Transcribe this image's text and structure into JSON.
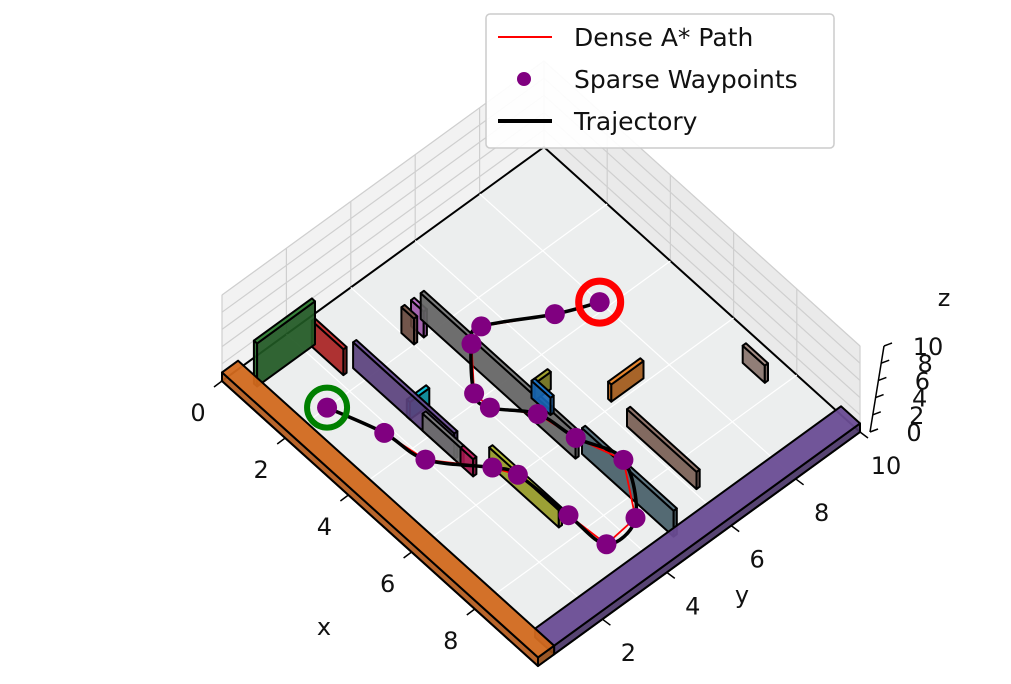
{
  "chart_data": {
    "type": "3d-line",
    "title": "",
    "xlabel": "x",
    "ylabel": "y",
    "zlabel": "z",
    "xlim": [
      0,
      10
    ],
    "ylim": [
      0,
      10
    ],
    "zlim": [
      0,
      10
    ],
    "xticks": [
      "0",
      "2",
      "4",
      "6",
      "8"
    ],
    "yticks": [
      "2",
      "4",
      "6",
      "8",
      "10"
    ],
    "zticks": [
      "0",
      "2",
      "4",
      "6",
      "8",
      "10"
    ],
    "grid": true,
    "legend_position": "top-center",
    "legend": [
      {
        "label": "Dense A* Path",
        "style": "line",
        "color": "#ff0000"
      },
      {
        "label": "Sparse Waypoints",
        "style": "marker",
        "color": "#800080"
      },
      {
        "label": "Trajectory",
        "style": "line",
        "color": "#000000"
      }
    ],
    "start_marker_color": "#008000",
    "goal_marker_color": "#ff0000",
    "waypoints": [
      [
        2.0,
        1.3,
        0
      ],
      [
        3.3,
        1.8,
        0
      ],
      [
        4.4,
        2.0,
        0
      ],
      [
        5.5,
        3.0,
        0
      ],
      [
        6.0,
        3.3,
        0
      ],
      [
        7.5,
        3.4,
        0
      ],
      [
        8.6,
        3.5,
        0
      ],
      [
        8.5,
        4.5,
        0
      ],
      [
        7.2,
        5.4,
        0
      ],
      [
        6.1,
        5.0,
        0
      ],
      [
        5.1,
        4.8,
        0
      ],
      [
        4.3,
        4.1,
        0
      ],
      [
        3.8,
        4.1,
        0
      ],
      [
        2.8,
        5.0,
        0
      ],
      [
        2.6,
        5.5,
        0
      ],
      [
        3.4,
        7.0,
        0
      ],
      [
        3.8,
        8.0,
        0
      ]
    ],
    "start": [
      2.0,
      1.3,
      0
    ],
    "goal": [
      3.8,
      8.0,
      0
    ],
    "walls": [
      {
        "x": [
          0,
          10
        ],
        "y": [
          0,
          0.5
        ],
        "h": 1,
        "color": "#d2691e"
      },
      {
        "x": [
          9.4,
          10
        ],
        "y": [
          0.5,
          10
        ],
        "h": 1,
        "color": "#6a4c93"
      },
      {
        "x": [
          0.5,
          0.6
        ],
        "y": [
          0.5,
          2.3
        ],
        "h": 5,
        "color": "#2e7d32"
      },
      {
        "x": [
          0.6,
          1.6
        ],
        "y": [
          2.2,
          2.3
        ],
        "h": 3,
        "color": "#c62828"
      },
      {
        "x": [
          1.6,
          4.8
        ],
        "y": [
          2.5,
          2.6
        ],
        "h": 3,
        "color": "#6a4c93"
      },
      {
        "x": [
          1.6,
          2.0
        ],
        "y": [
          4.0,
          4.1
        ],
        "h": 3,
        "color": "#795548"
      },
      {
        "x": [
          1.6,
          2.0
        ],
        "y": [
          4.3,
          4.4
        ],
        "h": 3,
        "color": "#ba68c8"
      },
      {
        "x": [
          1.6,
          6.5
        ],
        "y": [
          4.6,
          4.7
        ],
        "h": 3,
        "color": "#757575"
      },
      {
        "x": [
          6.5,
          9.4
        ],
        "y": [
          4.8,
          4.9
        ],
        "h": 3,
        "color": "#546e7a"
      },
      {
        "x": [
          7.0,
          7.7
        ],
        "y": [
          9.3,
          9.4
        ],
        "h": 2,
        "color": "#a1887f"
      },
      {
        "x": [
          3.3,
          3.4
        ],
        "y": [
          2.5,
          3.1
        ],
        "h": 2,
        "color": "#00bcd4"
      },
      {
        "x": [
          3.8,
          5.0
        ],
        "y": [
          2.5,
          2.6
        ],
        "h": 2,
        "color": "#808080"
      },
      {
        "x": [
          5.0,
          5.4
        ],
        "y": [
          2.5,
          2.6
        ],
        "h": 2,
        "color": "#c2185b"
      },
      {
        "x": [
          5.4,
          7.6
        ],
        "y": [
          3.0,
          3.1
        ],
        "h": 2,
        "color": "#afb42b"
      },
      {
        "x": [
          4.7,
          4.8
        ],
        "y": [
          5.0,
          5.5
        ],
        "h": 2,
        "color": "#9e9d24"
      },
      {
        "x": [
          4.7,
          5.3
        ],
        "y": [
          5.0,
          5.1
        ],
        "h": 2,
        "color": "#1976d2"
      },
      {
        "x": [
          5.8,
          5.9
        ],
        "y": [
          6.3,
          7.3
        ],
        "h": 2,
        "color": "#e67e22"
      },
      {
        "x": [
          6.6,
          8.8
        ],
        "y": [
          6.1,
          6.2
        ],
        "h": 2,
        "color": "#8d6e63"
      }
    ]
  }
}
